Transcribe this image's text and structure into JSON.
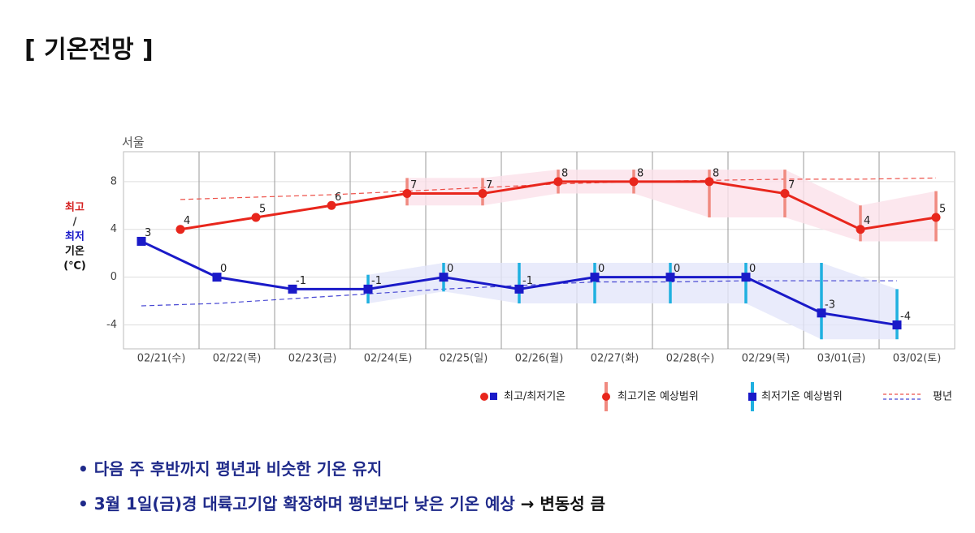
{
  "title": "[ 기온전망 ]",
  "chart_data": {
    "type": "line",
    "location": "서울",
    "ylabel": [
      "최고",
      "/",
      "최저",
      "기온",
      "(℃)"
    ],
    "categories": [
      "02/21(수)",
      "02/22(목)",
      "02/23(금)",
      "02/24(토)",
      "02/25(일)",
      "02/26(월)",
      "02/27(화)",
      "02/28(수)",
      "02/29(목)",
      "03/01(금)",
      "03/02(토)"
    ],
    "ylim": [
      -6,
      10.5
    ],
    "yticks": [
      -4,
      0,
      4,
      8
    ],
    "grid": true,
    "legend": [
      "최고/최저기온",
      "최고기온 예상범위",
      "최저기온 예상범위",
      "평년"
    ],
    "series": [
      {
        "color": "#e8261c",
        "values": [
          4,
          5,
          6,
          7,
          7,
          8,
          8,
          8,
          7,
          4,
          5
        ],
        "lower": [
          null,
          null,
          null,
          6,
          6,
          7,
          7,
          5,
          5,
          3,
          3
        ],
        "upper": [
          null,
          null,
          null,
          8.3,
          8.3,
          9,
          9,
          9,
          9,
          6,
          7.2
        ],
        "normal": [
          6.5,
          6.7,
          6.9,
          7.2,
          7.5,
          7.8,
          8.0,
          8.1,
          8.2,
          8.2,
          8.3
        ],
        "range_color": "#f08a80",
        "band_color": "#fbe1ea"
      },
      {
        "color": "#1a1ac8",
        "values": [
          3,
          0,
          -1,
          -1,
          0,
          -1,
          0,
          0,
          0,
          -3,
          -4
        ],
        "lower": [
          null,
          null,
          null,
          -2.2,
          -1.2,
          -2.2,
          -2.2,
          -2.2,
          -2.2,
          -5.2,
          -5.2
        ],
        "upper": [
          null,
          null,
          null,
          0.2,
          1.2,
          1.2,
          1.2,
          1.2,
          1.2,
          1.2,
          -1
        ],
        "normal": [
          -2.4,
          -2.2,
          -1.8,
          -1.4,
          -1.0,
          -0.7,
          -0.4,
          -0.4,
          -0.3,
          -0.3,
          -0.3
        ],
        "range_color": "#1fb0e0",
        "band_color": "#e3e6fa"
      }
    ]
  },
  "bullets": [
    [
      "다음 주 후반까지 평년과 비슷한 기온 유지"
    ],
    [
      "3월 1일(금)경 대륙고기압 확장하며 평년보다 낮은 기온 예상",
      "→ 변동성 큼"
    ]
  ]
}
